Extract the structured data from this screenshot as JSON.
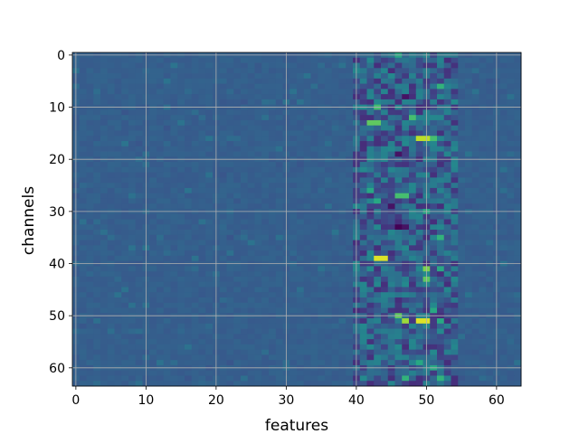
{
  "chart_data": {
    "type": "heatmap",
    "title": "",
    "xlabel": "features",
    "ylabel": "channels",
    "n_rows": 64,
    "n_cols": 64,
    "xlim": [
      -0.5,
      63.5
    ],
    "ylim": [
      63.5,
      -0.5
    ],
    "y_inverted": true,
    "xticks": [
      0,
      10,
      20,
      30,
      40,
      50,
      60
    ],
    "yticks": [
      0,
      10,
      20,
      30,
      40,
      50,
      60
    ],
    "grid": true,
    "colormap": "viridis",
    "value_range": [
      0,
      1
    ],
    "background_level": 0.3,
    "active_band_cols": [
      40,
      54
    ],
    "hotspots": [
      {
        "row": 0,
        "col": 46,
        "value": 0.6
      },
      {
        "row": 6,
        "col": 52,
        "value": 0.65
      },
      {
        "row": 8,
        "col": 47,
        "value": 0.05
      },
      {
        "row": 10,
        "col": 43,
        "value": 0.7
      },
      {
        "row": 12,
        "col": 48,
        "value": 0.7
      },
      {
        "row": 13,
        "col": 42,
        "value": 0.75
      },
      {
        "row": 13,
        "col": 43,
        "value": 0.75
      },
      {
        "row": 16,
        "col": 49,
        "value": 0.9
      },
      {
        "row": 16,
        "col": 50,
        "value": 0.9
      },
      {
        "row": 16,
        "col": 51,
        "value": 0.7
      },
      {
        "row": 19,
        "col": 46,
        "value": 0.05
      },
      {
        "row": 26,
        "col": 42,
        "value": 0.6
      },
      {
        "row": 27,
        "col": 46,
        "value": 0.7
      },
      {
        "row": 27,
        "col": 47,
        "value": 0.7
      },
      {
        "row": 28,
        "col": 43,
        "value": 0.6
      },
      {
        "row": 29,
        "col": 45,
        "value": 0.05
      },
      {
        "row": 30,
        "col": 50,
        "value": 0.6
      },
      {
        "row": 33,
        "col": 46,
        "value": 0.0
      },
      {
        "row": 33,
        "col": 47,
        "value": 0.05
      },
      {
        "row": 35,
        "col": 52,
        "value": 0.65
      },
      {
        "row": 39,
        "col": 43,
        "value": 0.95
      },
      {
        "row": 39,
        "col": 44,
        "value": 0.95
      },
      {
        "row": 41,
        "col": 50,
        "value": 0.8
      },
      {
        "row": 41,
        "col": 52,
        "value": 0.6
      },
      {
        "row": 43,
        "col": 50,
        "value": 0.75
      },
      {
        "row": 49,
        "col": 51,
        "value": 0.6
      },
      {
        "row": 50,
        "col": 46,
        "value": 0.75
      },
      {
        "row": 51,
        "col": 47,
        "value": 0.85
      },
      {
        "row": 51,
        "col": 49,
        "value": 0.95
      },
      {
        "row": 51,
        "col": 50,
        "value": 0.95
      },
      {
        "row": 51,
        "col": 52,
        "value": 0.6
      },
      {
        "row": 59,
        "col": 49,
        "value": 0.6
      },
      {
        "row": 60,
        "col": 51,
        "value": 0.6
      },
      {
        "row": 62,
        "col": 47,
        "value": 0.65
      },
      {
        "row": 62,
        "col": 52,
        "value": 0.65
      }
    ]
  }
}
